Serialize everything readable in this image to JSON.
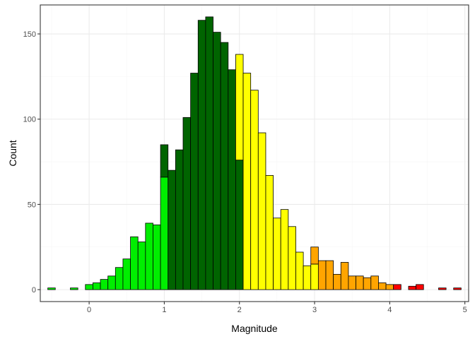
{
  "chart_data": {
    "type": "bar",
    "subtype": "stacked-histogram",
    "title": "",
    "xlabel": "Magnitude",
    "ylabel": "Count",
    "xlim": [
      -0.65,
      5.05
    ],
    "ylim": [
      -7,
      167
    ],
    "xticks": [
      0,
      1,
      2,
      3,
      4,
      5
    ],
    "yticks": [
      0,
      50,
      100,
      150
    ],
    "bin_width": 0.1,
    "grid": true,
    "legend": "none",
    "colors": {
      "light_green": "#00ee00",
      "dark_green": "#006400",
      "yellow": "#ffff00",
      "orange": "#ffa500",
      "red": "#ff0000",
      "outline": "#000000",
      "panel_border": "#333333"
    },
    "bins": [
      {
        "x0": -0.55,
        "segments": [
          {
            "value": 1,
            "color": "light_green"
          }
        ]
      },
      {
        "x0": -0.25,
        "segments": [
          {
            "value": 1,
            "color": "light_green"
          }
        ]
      },
      {
        "x0": -0.05,
        "segments": [
          {
            "value": 3,
            "color": "light_green"
          }
        ]
      },
      {
        "x0": 0.05,
        "segments": [
          {
            "value": 4,
            "color": "light_green"
          }
        ]
      },
      {
        "x0": 0.15,
        "segments": [
          {
            "value": 6,
            "color": "light_green"
          }
        ]
      },
      {
        "x0": 0.25,
        "segments": [
          {
            "value": 8,
            "color": "light_green"
          }
        ]
      },
      {
        "x0": 0.35,
        "segments": [
          {
            "value": 13,
            "color": "light_green"
          }
        ]
      },
      {
        "x0": 0.45,
        "segments": [
          {
            "value": 18,
            "color": "light_green"
          }
        ]
      },
      {
        "x0": 0.55,
        "segments": [
          {
            "value": 31,
            "color": "light_green"
          }
        ]
      },
      {
        "x0": 0.65,
        "segments": [
          {
            "value": 28,
            "color": "light_green"
          }
        ]
      },
      {
        "x0": 0.75,
        "segments": [
          {
            "value": 39,
            "color": "light_green"
          }
        ]
      },
      {
        "x0": 0.85,
        "segments": [
          {
            "value": 38,
            "color": "light_green"
          }
        ]
      },
      {
        "x0": 0.95,
        "segments": [
          {
            "value": 66,
            "color": "light_green"
          },
          {
            "value": 19,
            "color": "dark_green"
          }
        ]
      },
      {
        "x0": 1.05,
        "segments": [
          {
            "value": 70,
            "color": "dark_green"
          }
        ]
      },
      {
        "x0": 1.15,
        "segments": [
          {
            "value": 82,
            "color": "dark_green"
          }
        ]
      },
      {
        "x0": 1.25,
        "segments": [
          {
            "value": 101,
            "color": "dark_green"
          }
        ]
      },
      {
        "x0": 1.35,
        "segments": [
          {
            "value": 127,
            "color": "dark_green"
          }
        ]
      },
      {
        "x0": 1.45,
        "segments": [
          {
            "value": 158,
            "color": "dark_green"
          }
        ]
      },
      {
        "x0": 1.55,
        "segments": [
          {
            "value": 160,
            "color": "dark_green"
          }
        ]
      },
      {
        "x0": 1.65,
        "segments": [
          {
            "value": 151,
            "color": "dark_green"
          }
        ]
      },
      {
        "x0": 1.75,
        "segments": [
          {
            "value": 145,
            "color": "dark_green"
          }
        ]
      },
      {
        "x0": 1.85,
        "segments": [
          {
            "value": 129,
            "color": "dark_green"
          }
        ]
      },
      {
        "x0": 1.95,
        "segments": [
          {
            "value": 76,
            "color": "dark_green"
          },
          {
            "value": 62,
            "color": "yellow"
          }
        ]
      },
      {
        "x0": 2.05,
        "segments": [
          {
            "value": 127,
            "color": "yellow"
          }
        ]
      },
      {
        "x0": 2.15,
        "segments": [
          {
            "value": 117,
            "color": "yellow"
          }
        ]
      },
      {
        "x0": 2.25,
        "segments": [
          {
            "value": 92,
            "color": "yellow"
          }
        ]
      },
      {
        "x0": 2.35,
        "segments": [
          {
            "value": 67,
            "color": "yellow"
          }
        ]
      },
      {
        "x0": 2.45,
        "segments": [
          {
            "value": 42,
            "color": "yellow"
          }
        ]
      },
      {
        "x0": 2.55,
        "segments": [
          {
            "value": 47,
            "color": "yellow"
          }
        ]
      },
      {
        "x0": 2.65,
        "segments": [
          {
            "value": 37,
            "color": "yellow"
          }
        ]
      },
      {
        "x0": 2.75,
        "segments": [
          {
            "value": 22,
            "color": "yellow"
          }
        ]
      },
      {
        "x0": 2.85,
        "segments": [
          {
            "value": 14,
            "color": "yellow"
          }
        ]
      },
      {
        "x0": 2.95,
        "segments": [
          {
            "value": 15,
            "color": "yellow"
          },
          {
            "value": 10,
            "color": "orange"
          }
        ]
      },
      {
        "x0": 3.05,
        "segments": [
          {
            "value": 17,
            "color": "orange"
          }
        ]
      },
      {
        "x0": 3.15,
        "segments": [
          {
            "value": 17,
            "color": "orange"
          }
        ]
      },
      {
        "x0": 3.25,
        "segments": [
          {
            "value": 9,
            "color": "orange"
          }
        ]
      },
      {
        "x0": 3.35,
        "segments": [
          {
            "value": 16,
            "color": "orange"
          }
        ]
      },
      {
        "x0": 3.45,
        "segments": [
          {
            "value": 8,
            "color": "orange"
          }
        ]
      },
      {
        "x0": 3.55,
        "segments": [
          {
            "value": 8,
            "color": "orange"
          }
        ]
      },
      {
        "x0": 3.65,
        "segments": [
          {
            "value": 7,
            "color": "orange"
          }
        ]
      },
      {
        "x0": 3.75,
        "segments": [
          {
            "value": 8,
            "color": "orange"
          }
        ]
      },
      {
        "x0": 3.85,
        "segments": [
          {
            "value": 4,
            "color": "orange"
          }
        ]
      },
      {
        "x0": 3.95,
        "segments": [
          {
            "value": 3,
            "color": "orange"
          }
        ]
      },
      {
        "x0": 4.05,
        "segments": [
          {
            "value": 3,
            "color": "red"
          }
        ]
      },
      {
        "x0": 4.25,
        "segments": [
          {
            "value": 2,
            "color": "red"
          }
        ]
      },
      {
        "x0": 4.35,
        "segments": [
          {
            "value": 3,
            "color": "red"
          }
        ]
      },
      {
        "x0": 4.65,
        "segments": [
          {
            "value": 1,
            "color": "red"
          }
        ]
      },
      {
        "x0": 4.85,
        "segments": [
          {
            "value": 1,
            "color": "red"
          }
        ]
      }
    ]
  }
}
